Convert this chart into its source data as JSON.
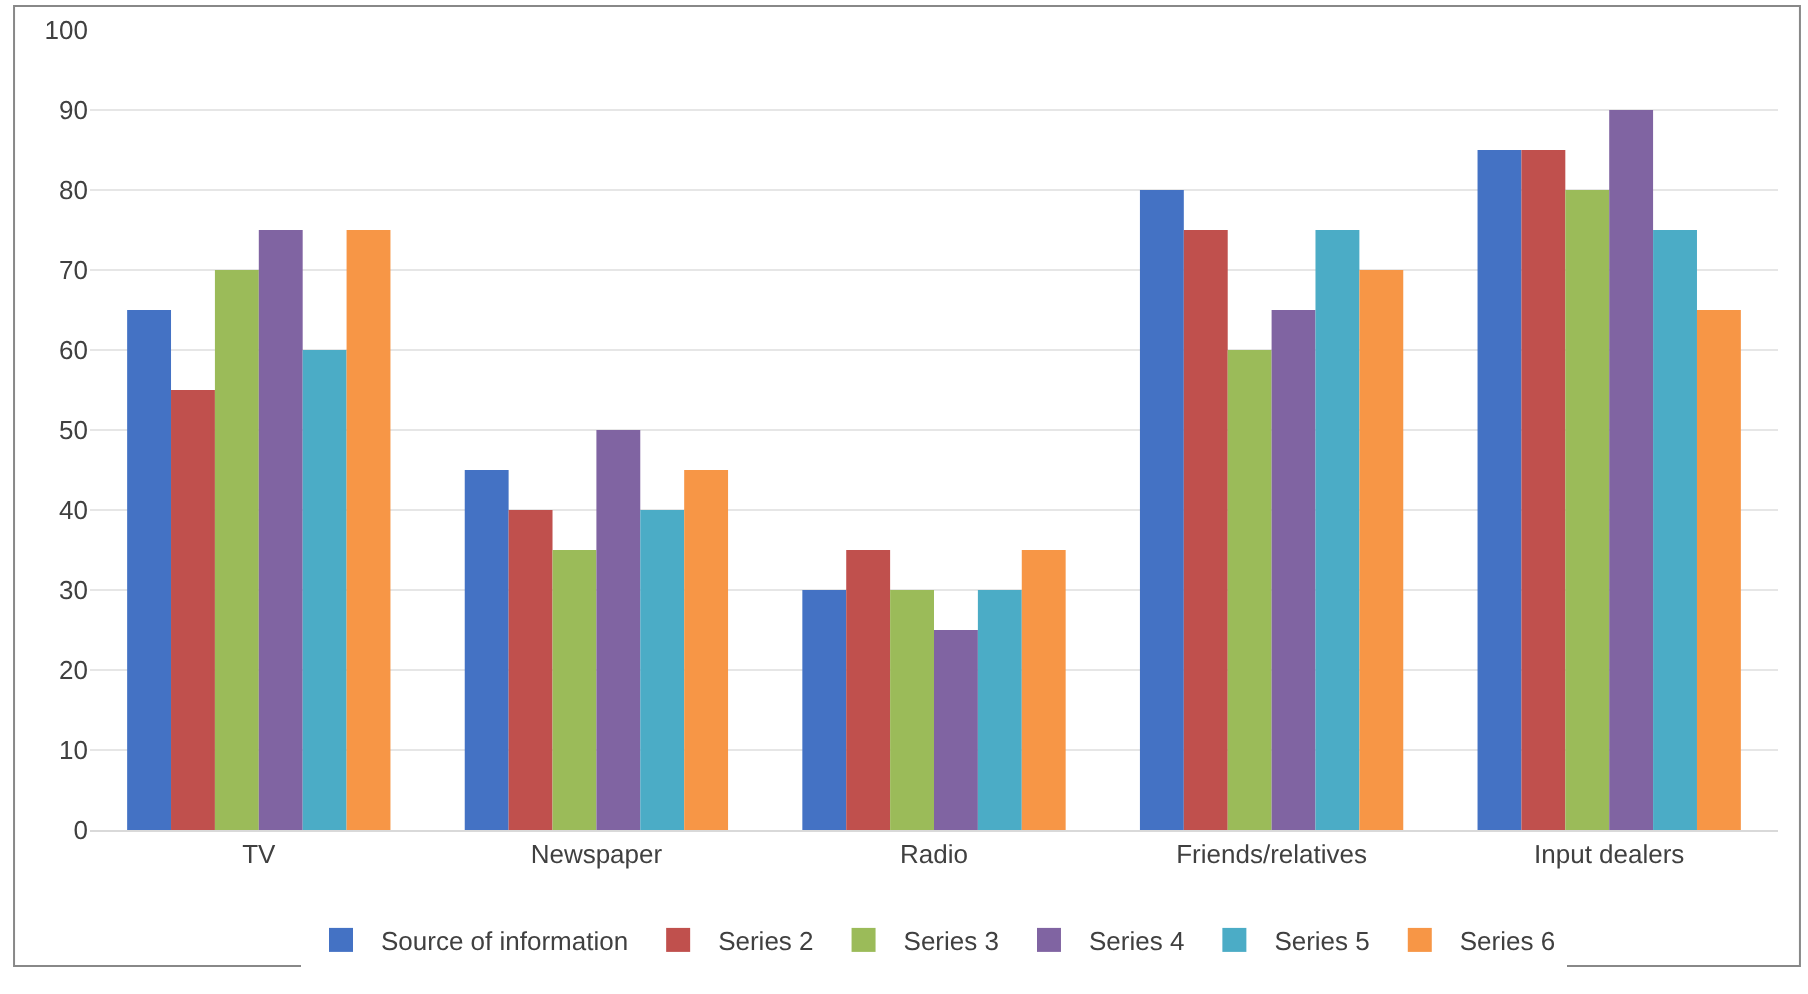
{
  "chart_data": {
    "type": "bar",
    "categories": [
      "TV",
      "Newspaper",
      "Radio",
      "Friends/relatives",
      "Input dealers"
    ],
    "series": [
      {
        "name": "Source of information",
        "color": "#4472c4",
        "values": [
          65,
          45,
          30,
          80,
          85
        ]
      },
      {
        "name": "Series 2",
        "color": "#c0504d",
        "values": [
          55,
          40,
          35,
          75,
          85
        ]
      },
      {
        "name": "Series 3",
        "color": "#9bbb59",
        "values": [
          70,
          35,
          30,
          60,
          80
        ]
      },
      {
        "name": "Series 4",
        "color": "#8064a2",
        "values": [
          75,
          50,
          25,
          65,
          90
        ]
      },
      {
        "name": "Series 5",
        "color": "#4bacc6",
        "values": [
          60,
          40,
          30,
          75,
          75
        ]
      },
      {
        "name": "Series 6",
        "color": "#f79646",
        "values": [
          75,
          45,
          35,
          70,
          65
        ]
      }
    ],
    "ylim": [
      0,
      100
    ],
    "yticks": [
      0,
      10,
      20,
      30,
      40,
      50,
      60,
      70,
      80,
      90,
      100
    ],
    "grid": "y",
    "legend": "bottom"
  }
}
